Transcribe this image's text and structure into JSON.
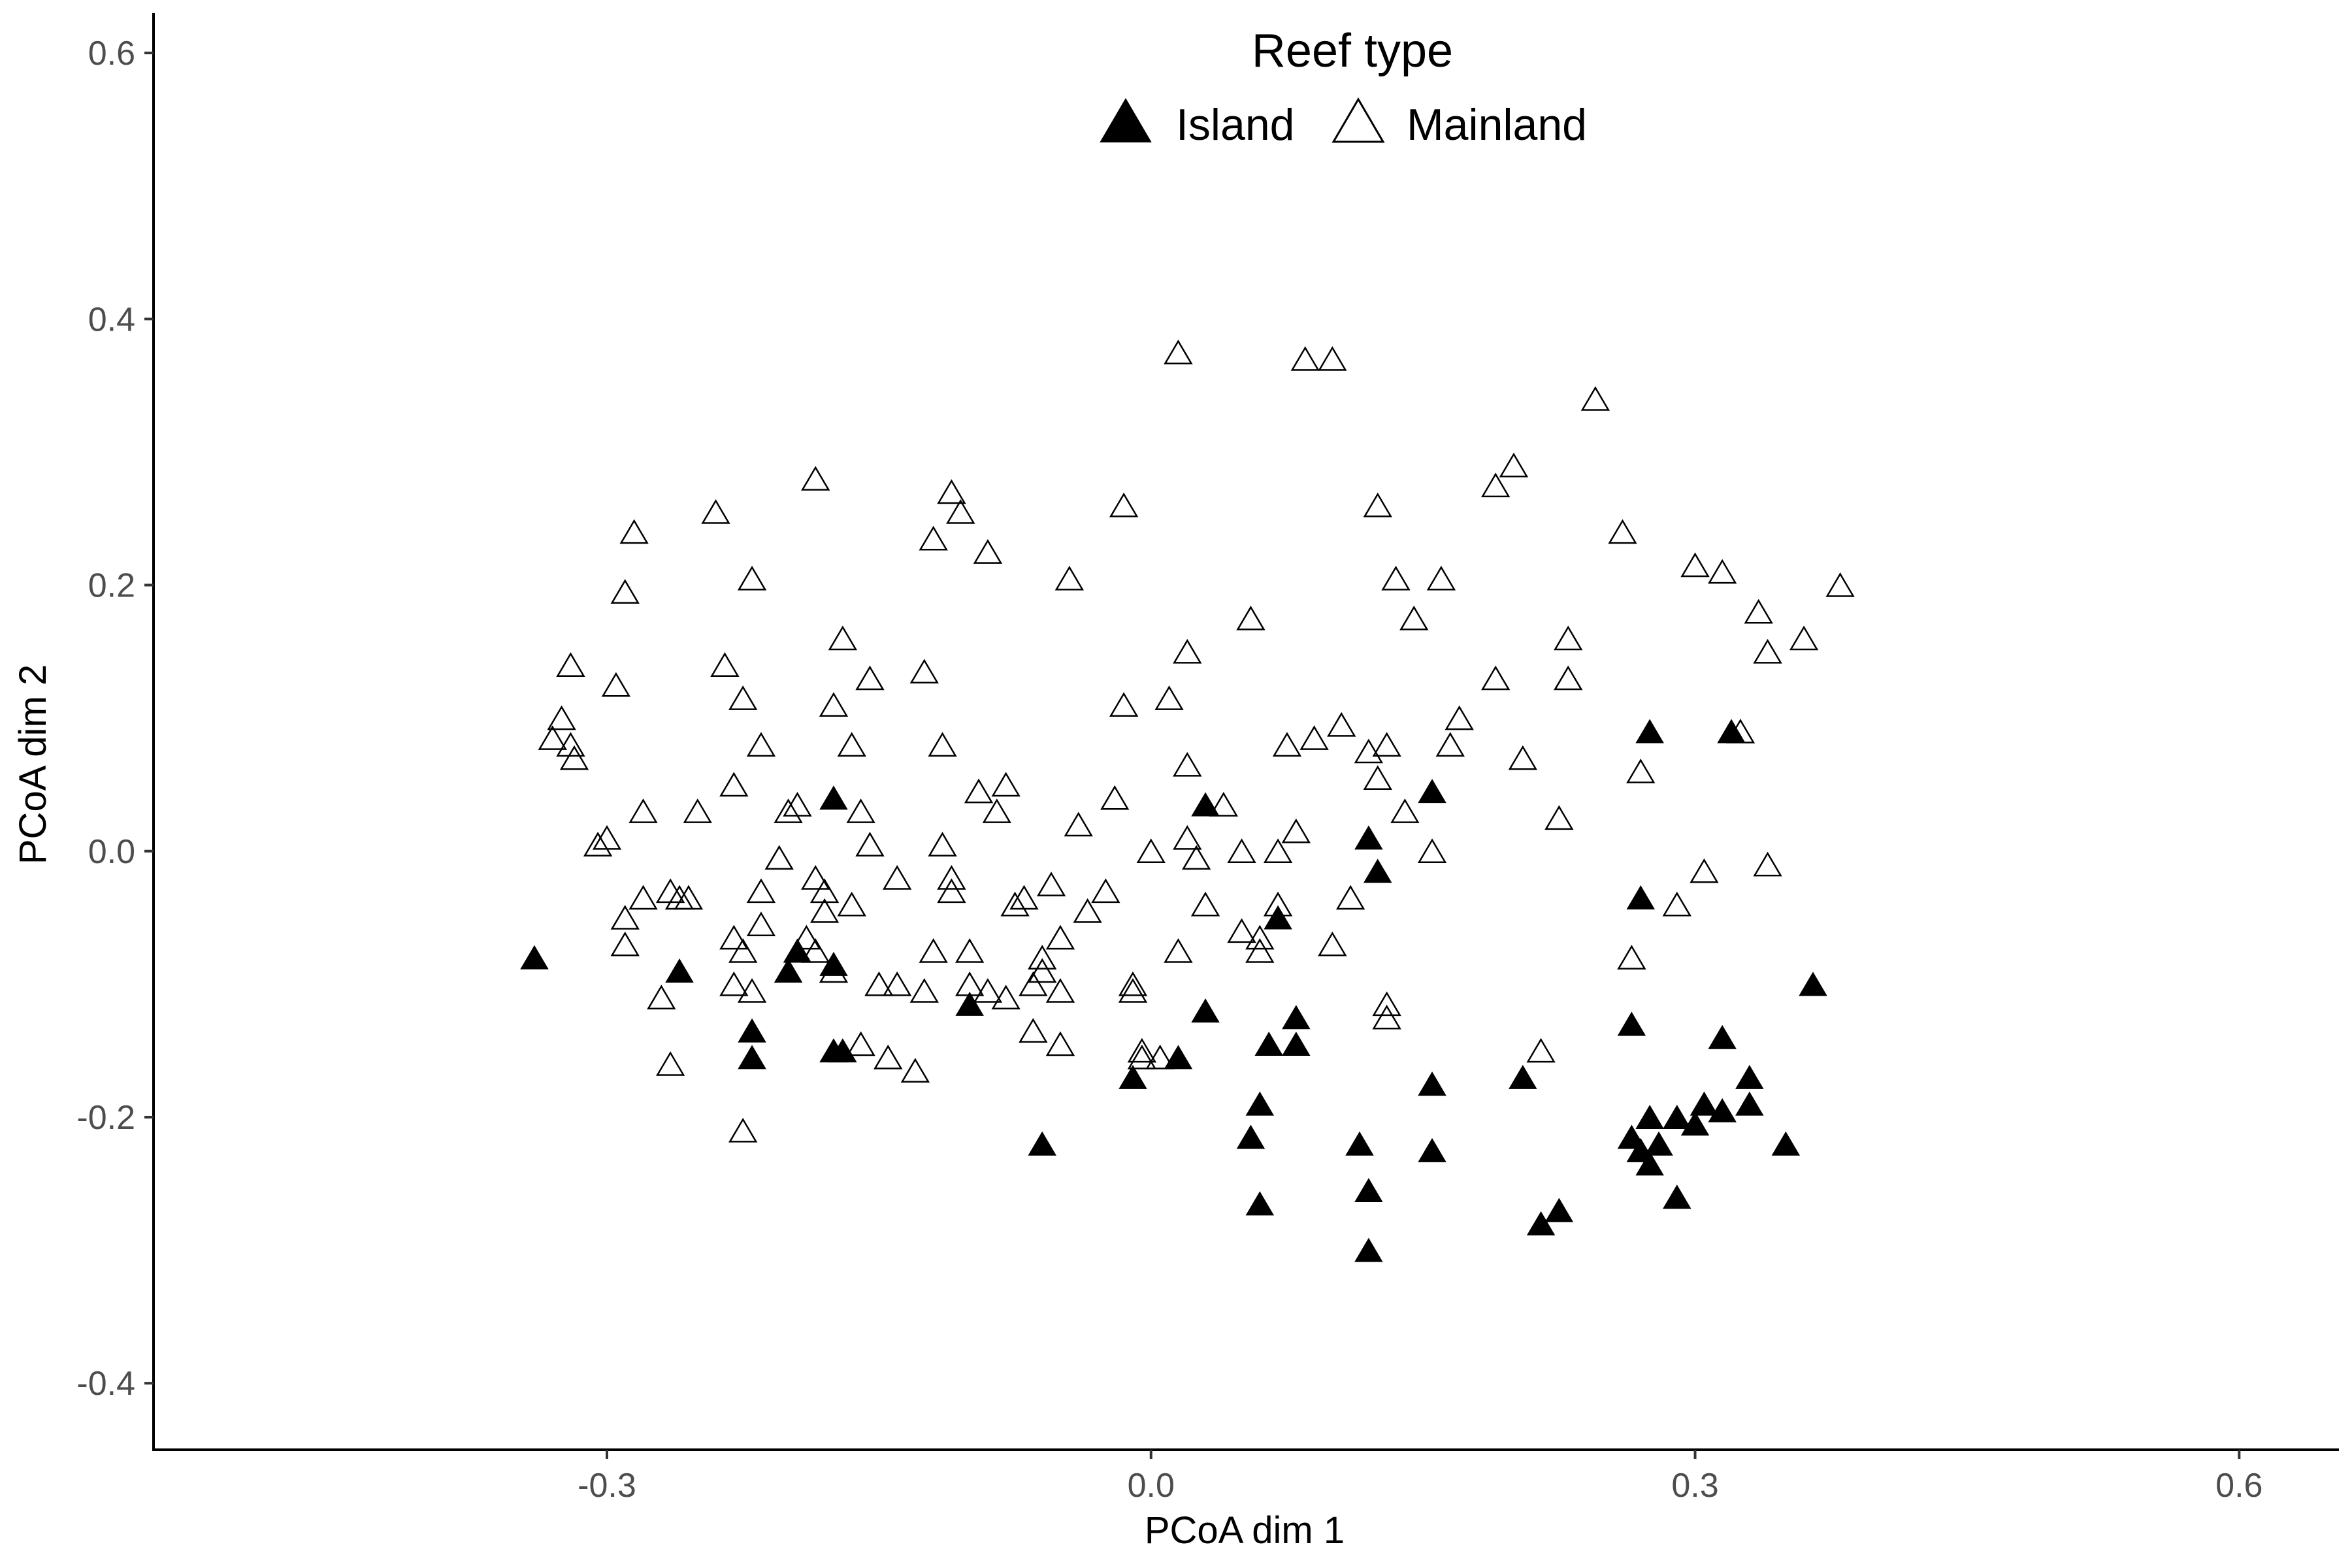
{
  "chart_data": {
    "type": "scatter",
    "title": "",
    "xlabel": "PCoA dim 1",
    "ylabel": "PCoA dim 2",
    "xlim": [
      -0.55,
      0.655
    ],
    "ylim": [
      -0.45,
      0.63
    ],
    "xticks": [
      -0.3,
      0.0,
      0.3,
      0.6
    ],
    "xtick_labels": [
      "-0.3",
      "0.0",
      "0.3",
      "0.6"
    ],
    "yticks": [
      -0.4,
      -0.2,
      0.0,
      0.2,
      0.4,
      0.6
    ],
    "ytick_labels": [
      "-0.4",
      "-0.2",
      "0.0",
      "0.2",
      "0.4",
      "0.6"
    ],
    "grid": false,
    "legend": {
      "title": "Reef type",
      "position": "top-center",
      "entries": [
        "Island",
        "Mainland"
      ]
    },
    "series": [
      {
        "name": "Island",
        "marker": "filled-triangle",
        "color": "#000000",
        "points": [
          [
            -0.34,
            -0.08
          ],
          [
            -0.26,
            -0.09
          ],
          [
            -0.22,
            -0.135
          ],
          [
            -0.22,
            -0.155
          ],
          [
            -0.2,
            -0.09
          ],
          [
            -0.195,
            -0.075
          ],
          [
            -0.175,
            -0.085
          ],
          [
            -0.175,
            0.04
          ],
          [
            -0.175,
            -0.15
          ],
          [
            -0.17,
            -0.15
          ],
          [
            -0.1,
            -0.115
          ],
          [
            -0.06,
            -0.22
          ],
          [
            -0.01,
            -0.17
          ],
          [
            0.015,
            -0.155
          ],
          [
            0.03,
            -0.12
          ],
          [
            0.03,
            0.035
          ],
          [
            0.055,
            -0.215
          ],
          [
            0.06,
            -0.19
          ],
          [
            0.06,
            -0.265
          ],
          [
            0.065,
            -0.145
          ],
          [
            0.07,
            -0.05
          ],
          [
            0.08,
            -0.125
          ],
          [
            0.08,
            -0.145
          ],
          [
            0.115,
            -0.22
          ],
          [
            0.12,
            -0.255
          ],
          [
            0.12,
            -0.3
          ],
          [
            0.12,
            0.01
          ],
          [
            0.125,
            -0.015
          ],
          [
            0.155,
            0.045
          ],
          [
            0.155,
            -0.175
          ],
          [
            0.155,
            -0.225
          ],
          [
            0.205,
            -0.17
          ],
          [
            0.215,
            -0.28
          ],
          [
            0.225,
            -0.27
          ],
          [
            0.265,
            -0.215
          ],
          [
            0.265,
            -0.13
          ],
          [
            0.27,
            -0.035
          ],
          [
            0.27,
            -0.225
          ],
          [
            0.275,
            0.09
          ],
          [
            0.275,
            -0.235
          ],
          [
            0.275,
            -0.2
          ],
          [
            0.28,
            -0.22
          ],
          [
            0.29,
            -0.2
          ],
          [
            0.29,
            -0.26
          ],
          [
            0.3,
            -0.205
          ],
          [
            0.305,
            -0.19
          ],
          [
            0.315,
            -0.195
          ],
          [
            0.315,
            -0.14
          ],
          [
            0.32,
            0.09
          ],
          [
            0.33,
            -0.17
          ],
          [
            0.33,
            -0.19
          ],
          [
            0.35,
            -0.22
          ],
          [
            0.365,
            -0.1
          ]
        ]
      },
      {
        "name": "Mainland",
        "marker": "open-triangle",
        "color": "#000000",
        "points": [
          [
            -0.33,
            0.085
          ],
          [
            -0.325,
            0.1
          ],
          [
            -0.32,
            0.08
          ],
          [
            -0.32,
            0.14
          ],
          [
            -0.318,
            0.07
          ],
          [
            -0.305,
            0.005
          ],
          [
            -0.3,
            0.01
          ],
          [
            -0.295,
            0.125
          ],
          [
            -0.29,
            0.195
          ],
          [
            -0.29,
            -0.05
          ],
          [
            -0.29,
            -0.07
          ],
          [
            -0.285,
            0.24
          ],
          [
            -0.28,
            0.03
          ],
          [
            -0.28,
            -0.035
          ],
          [
            -0.27,
            -0.11
          ],
          [
            -0.265,
            -0.16
          ],
          [
            -0.265,
            -0.03
          ],
          [
            -0.26,
            -0.035
          ],
          [
            -0.255,
            -0.035
          ],
          [
            -0.25,
            0.03
          ],
          [
            -0.24,
            0.255
          ],
          [
            -0.235,
            0.14
          ],
          [
            -0.23,
            -0.065
          ],
          [
            -0.23,
            0.05
          ],
          [
            -0.23,
            -0.1
          ],
          [
            -0.225,
            0.115
          ],
          [
            -0.225,
            -0.075
          ],
          [
            -0.225,
            -0.21
          ],
          [
            -0.22,
            -0.105
          ],
          [
            -0.22,
            0.205
          ],
          [
            -0.215,
            -0.03
          ],
          [
            -0.215,
            0.08
          ],
          [
            -0.215,
            -0.055
          ],
          [
            -0.205,
            -0.005
          ],
          [
            -0.2,
            0.03
          ],
          [
            -0.195,
            0.035
          ],
          [
            -0.19,
            -0.065
          ],
          [
            -0.185,
            -0.02
          ],
          [
            -0.185,
            0.28
          ],
          [
            -0.185,
            -0.075
          ],
          [
            -0.18,
            -0.03
          ],
          [
            -0.18,
            -0.045
          ],
          [
            -0.175,
            0.11
          ],
          [
            -0.175,
            -0.09
          ],
          [
            -0.17,
            0.16
          ],
          [
            -0.165,
            -0.04
          ],
          [
            -0.165,
            0.08
          ],
          [
            -0.16,
            0.03
          ],
          [
            -0.16,
            -0.145
          ],
          [
            -0.155,
            0.13
          ],
          [
            -0.155,
            0.005
          ],
          [
            -0.15,
            -0.1
          ],
          [
            -0.145,
            -0.155
          ],
          [
            -0.14,
            -0.02
          ],
          [
            -0.14,
            -0.1
          ],
          [
            -0.13,
            -0.165
          ],
          [
            -0.125,
            0.135
          ],
          [
            -0.125,
            -0.105
          ],
          [
            -0.12,
            -0.075
          ],
          [
            -0.12,
            0.235
          ],
          [
            -0.115,
            0.005
          ],
          [
            -0.115,
            0.08
          ],
          [
            -0.11,
            0.27
          ],
          [
            -0.11,
            -0.02
          ],
          [
            -0.11,
            -0.03
          ],
          [
            -0.105,
            0.255
          ],
          [
            -0.1,
            -0.075
          ],
          [
            -0.1,
            -0.1
          ],
          [
            -0.095,
            0.045
          ],
          [
            -0.09,
            -0.105
          ],
          [
            -0.09,
            0.225
          ],
          [
            -0.085,
            0.03
          ],
          [
            -0.08,
            0.05
          ],
          [
            -0.08,
            -0.11
          ],
          [
            -0.075,
            -0.04
          ],
          [
            -0.07,
            -0.035
          ],
          [
            -0.065,
            -0.1
          ],
          [
            -0.065,
            -0.135
          ],
          [
            -0.06,
            -0.08
          ],
          [
            -0.06,
            -0.09
          ],
          [
            -0.055,
            -0.025
          ],
          [
            -0.05,
            -0.105
          ],
          [
            -0.05,
            -0.145
          ],
          [
            -0.05,
            -0.065
          ],
          [
            -0.045,
            0.205
          ],
          [
            -0.04,
            0.02
          ],
          [
            -0.035,
            -0.045
          ],
          [
            -0.025,
            -0.03
          ],
          [
            -0.02,
            0.04
          ],
          [
            -0.015,
            0.11
          ],
          [
            -0.015,
            0.26
          ],
          [
            -0.01,
            -0.105
          ],
          [
            -0.01,
            -0.1
          ],
          [
            -0.005,
            -0.15
          ],
          [
            -0.005,
            -0.155
          ],
          [
            0.0,
            0.0
          ],
          [
            0.005,
            -0.155
          ],
          [
            0.01,
            0.115
          ],
          [
            0.015,
            -0.075
          ],
          [
            0.015,
            0.375
          ],
          [
            0.02,
            0.065
          ],
          [
            0.02,
            0.01
          ],
          [
            0.02,
            0.15
          ],
          [
            0.025,
            -0.005
          ],
          [
            0.03,
            -0.04
          ],
          [
            0.04,
            0.035
          ],
          [
            0.05,
            -0.06
          ],
          [
            0.05,
            0.0
          ],
          [
            0.055,
            0.175
          ],
          [
            0.06,
            -0.065
          ],
          [
            0.06,
            -0.075
          ],
          [
            0.07,
            -0.04
          ],
          [
            0.07,
            0.0
          ],
          [
            0.075,
            0.08
          ],
          [
            0.08,
            0.015
          ],
          [
            0.085,
            0.37
          ],
          [
            0.09,
            0.085
          ],
          [
            0.1,
            0.37
          ],
          [
            0.1,
            -0.07
          ],
          [
            0.105,
            0.095
          ],
          [
            0.11,
            -0.035
          ],
          [
            0.12,
            0.075
          ],
          [
            0.125,
            0.26
          ],
          [
            0.125,
            0.055
          ],
          [
            0.13,
            0.08
          ],
          [
            0.13,
            -0.115
          ],
          [
            0.13,
            -0.125
          ],
          [
            0.135,
            0.205
          ],
          [
            0.14,
            0.03
          ],
          [
            0.145,
            0.175
          ],
          [
            0.155,
            0.0
          ],
          [
            0.16,
            0.205
          ],
          [
            0.165,
            0.08
          ],
          [
            0.17,
            0.1
          ],
          [
            0.19,
            0.13
          ],
          [
            0.19,
            0.275
          ],
          [
            0.2,
            0.29
          ],
          [
            0.205,
            0.07
          ],
          [
            0.215,
            -0.15
          ],
          [
            0.225,
            0.025
          ],
          [
            0.23,
            0.16
          ],
          [
            0.23,
            0.13
          ],
          [
            0.245,
            0.34
          ],
          [
            0.26,
            0.24
          ],
          [
            0.265,
            -0.08
          ],
          [
            0.27,
            0.06
          ],
          [
            0.29,
            -0.04
          ],
          [
            0.3,
            0.215
          ],
          [
            0.305,
            -0.015
          ],
          [
            0.315,
            0.21
          ],
          [
            0.325,
            0.09
          ],
          [
            0.335,
            0.18
          ],
          [
            0.34,
            -0.01
          ],
          [
            0.34,
            0.15
          ],
          [
            0.36,
            0.16
          ],
          [
            0.38,
            0.2
          ]
        ]
      }
    ]
  }
}
